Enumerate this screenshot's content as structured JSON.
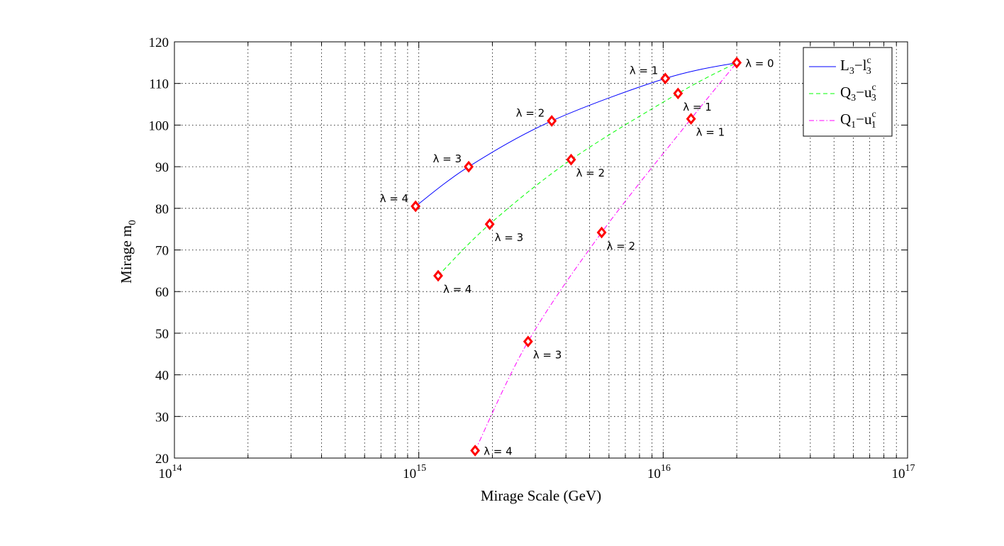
{
  "chart_data": {
    "type": "line",
    "title": "",
    "xlabel": "Mirage Scale (GeV)",
    "ylabel": "Mirage m",
    "ylabel_sub": "0",
    "xscale": "log",
    "xlim": [
      100000000000000.0,
      1e+17
    ],
    "ylim": [
      20,
      120
    ],
    "yticks": [
      20,
      30,
      40,
      50,
      60,
      70,
      80,
      90,
      100,
      110,
      120
    ],
    "xticks": [
      {
        "value": 100000000000000.0,
        "base": "10",
        "exp": "14"
      },
      {
        "value": 1000000000000000.0,
        "base": "10",
        "exp": "15"
      },
      {
        "value": 1e+16,
        "base": "10",
        "exp": "16"
      },
      {
        "value": 1e+17,
        "base": "10",
        "exp": "17"
      }
    ],
    "grid": true,
    "legend_position": "top-right",
    "series": [
      {
        "name": "L3-l3c",
        "legend": {
          "a": "L",
          "a_sub": "3",
          "b": "l",
          "b_sub": "3",
          "b_sup": "c"
        },
        "color": "#0000ff",
        "dash": "solid",
        "curve": [
          [
            970000000000000.0,
            80.5
          ],
          [
            1600000000000000.0,
            90
          ],
          [
            3500000000000000.0,
            101
          ],
          [
            1.02e+16,
            111.2
          ],
          [
            2e+16,
            115
          ]
        ],
        "markers": [
          {
            "x": 2e+16,
            "y": 115,
            "label": "λ = 0",
            "anchor": "right"
          },
          {
            "x": 1.02e+16,
            "y": 111.2,
            "label": "λ = 1",
            "anchor": "upper-left"
          },
          {
            "x": 3500000000000000.0,
            "y": 101,
            "label": "λ = 2",
            "anchor": "upper-left"
          },
          {
            "x": 1600000000000000.0,
            "y": 90,
            "label": "λ = 3",
            "anchor": "upper-left"
          },
          {
            "x": 970000000000000.0,
            "y": 80.5,
            "label": "λ = 4",
            "anchor": "upper-left"
          }
        ]
      },
      {
        "name": "Q3-u3c",
        "legend": {
          "a": "Q",
          "a_sub": "3",
          "b": "u",
          "b_sub": "3",
          "b_sup": "c"
        },
        "color": "#00ff00",
        "dash": "dashed",
        "curve": [
          [
            1200000000000000.0,
            63.8
          ],
          [
            1950000000000000.0,
            76.2
          ],
          [
            4200000000000000.0,
            91.7
          ],
          [
            1.15e+16,
            107.6
          ],
          [
            2e+16,
            115
          ]
        ],
        "markers": [
          {
            "x": 1.15e+16,
            "y": 107.6,
            "label": "λ = 1",
            "anchor": "lower-right"
          },
          {
            "x": 4200000000000000.0,
            "y": 91.7,
            "label": "λ = 2",
            "anchor": "lower-right"
          },
          {
            "x": 1950000000000000.0,
            "y": 76.2,
            "label": "λ = 3",
            "anchor": "lower-right"
          },
          {
            "x": 1200000000000000.0,
            "y": 63.8,
            "label": "λ = 4",
            "anchor": "lower-right"
          }
        ]
      },
      {
        "name": "Q1-u1c",
        "legend": {
          "a": "Q",
          "a_sub": "1",
          "b": "u",
          "b_sub": "1",
          "b_sup": "c"
        },
        "color": "#ff00ff",
        "dash": "dashdot",
        "curve": [
          [
            1700000000000000.0,
            21.8
          ],
          [
            2800000000000000.0,
            48
          ],
          [
            5600000000000000.0,
            74.2
          ],
          [
            1.3e+16,
            101.5
          ],
          [
            2e+16,
            115
          ]
        ],
        "markers": [
          {
            "x": 1.3e+16,
            "y": 101.5,
            "label": "λ = 1",
            "anchor": "lower-right"
          },
          {
            "x": 5600000000000000.0,
            "y": 74.2,
            "label": "λ = 2",
            "anchor": "lower-right"
          },
          {
            "x": 2800000000000000.0,
            "y": 48,
            "label": "λ = 3",
            "anchor": "lower-right"
          },
          {
            "x": 1700000000000000.0,
            "y": 21.8,
            "label": "λ = 4",
            "anchor": "right"
          }
        ]
      }
    ]
  },
  "colors": {
    "marker": "#ff0000",
    "axis": "#000000",
    "grid": "#000000"
  }
}
